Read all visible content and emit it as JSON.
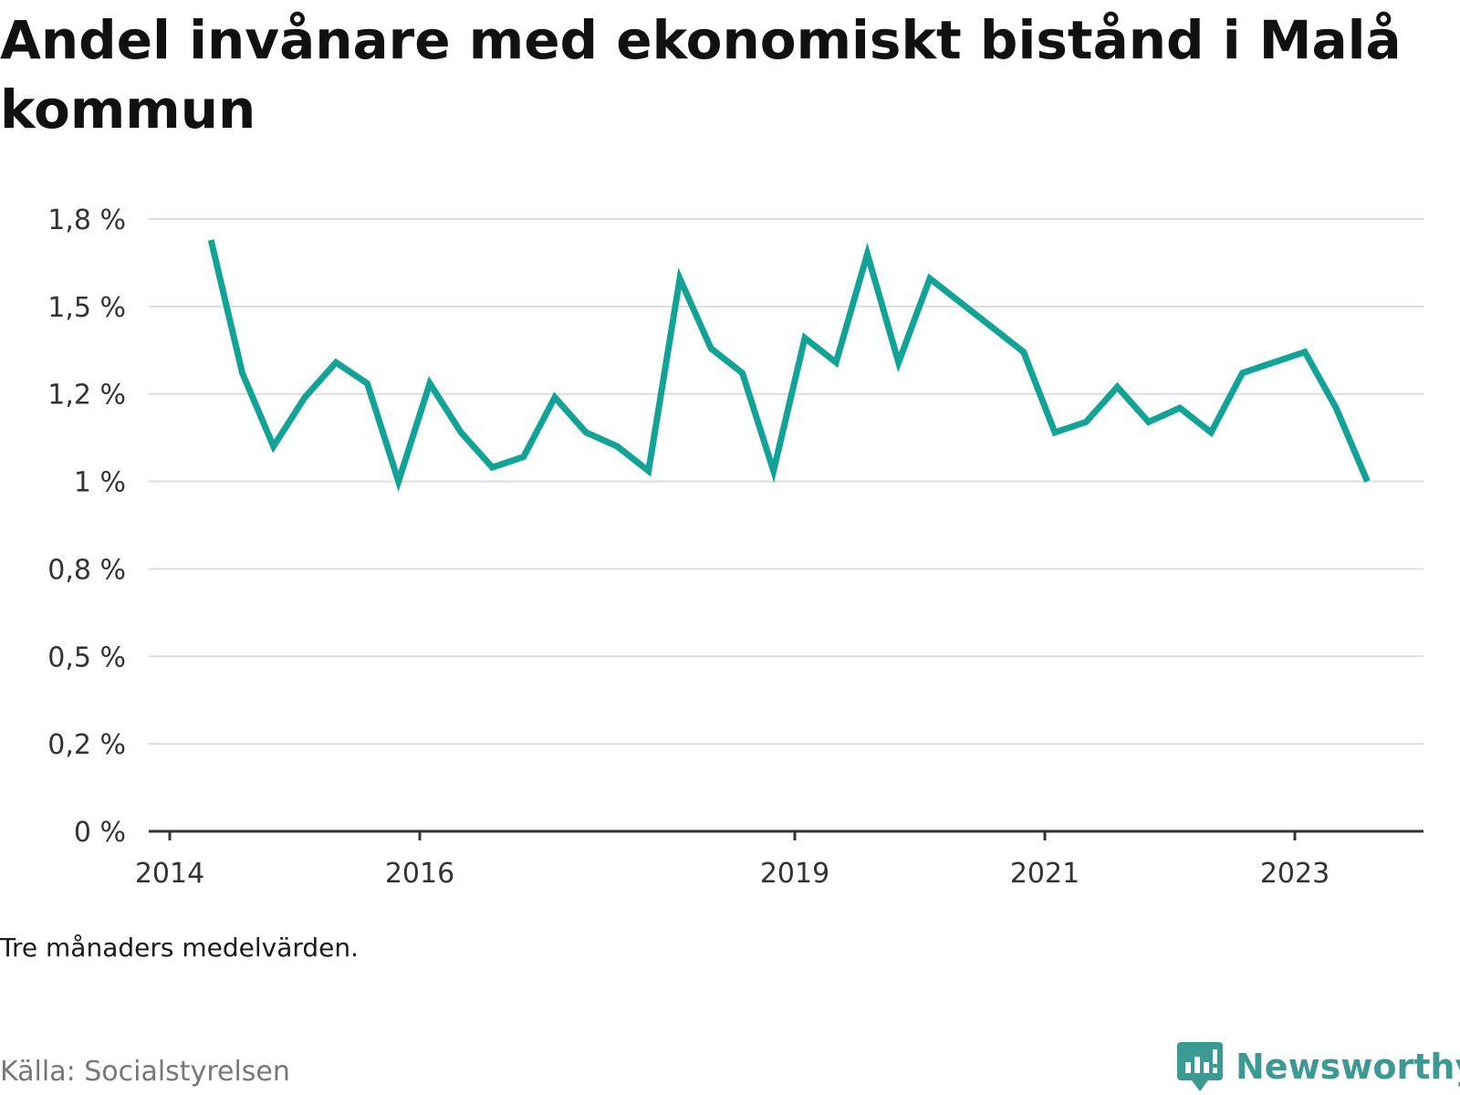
{
  "title": "Andel invånare med ekonomiskt bistånd i Malå kommun",
  "note": "Tre månaders medelvärden.",
  "source": "Källa: Socialstyrelsen",
  "brand": {
    "name": "Newsworthy",
    "icon": "newsworthy-logo-icon",
    "color": "#3d9a93"
  },
  "chart_data": {
    "type": "line",
    "title": "Andel invånare med ekonomiskt bistånd i Malå kommun",
    "xlabel": "",
    "ylabel": "",
    "x_ticks": [
      2014,
      2016,
      2019,
      2021,
      2023
    ],
    "y_ticks": [
      {
        "value": 0,
        "label": "0 %"
      },
      {
        "value": 0.25,
        "label": "0,2 %"
      },
      {
        "value": 0.5,
        "label": "0,5 %"
      },
      {
        "value": 0.75,
        "label": "0,8 %"
      },
      {
        "value": 1.0,
        "label": "1 %"
      },
      {
        "value": 1.25,
        "label": "1,2 %"
      },
      {
        "value": 1.5,
        "label": "1,5 %"
      },
      {
        "value": 1.75,
        "label": "1,8 %"
      }
    ],
    "ylim": [
      0,
      1.75
    ],
    "xlim": [
      2014,
      2024.0
    ],
    "grid": true,
    "line_color": "#12a396",
    "series": [
      {
        "x": [
          2014.33,
          2014.58,
          2014.83,
          2015.08,
          2015.33,
          2015.58,
          2015.83,
          2016.08,
          2016.33,
          2016.58,
          2016.83,
          2017.08,
          2017.33,
          2017.58,
          2017.83,
          2018.08,
          2018.33,
          2018.58,
          2018.83,
          2019.08,
          2019.33,
          2019.58,
          2019.83,
          2020.08,
          2020.33,
          2020.58,
          2020.83,
          2021.08,
          2021.33,
          2021.58,
          2021.83,
          2022.08,
          2022.33,
          2022.58,
          2022.83,
          2023.08,
          2023.33,
          2023.58
        ],
        "values": [
          1.69,
          1.31,
          1.1,
          1.24,
          1.34,
          1.28,
          1.0,
          1.28,
          1.14,
          1.04,
          1.07,
          1.24,
          1.14,
          1.1,
          1.03,
          1.58,
          1.38,
          1.31,
          1.03,
          1.41,
          1.34,
          1.65,
          1.34,
          1.58,
          1.51,
          1.44,
          1.37,
          1.14,
          1.17,
          1.27,
          1.17,
          1.21,
          1.14,
          1.31,
          1.34,
          1.37,
          1.21,
          1.0
        ]
      }
    ]
  }
}
